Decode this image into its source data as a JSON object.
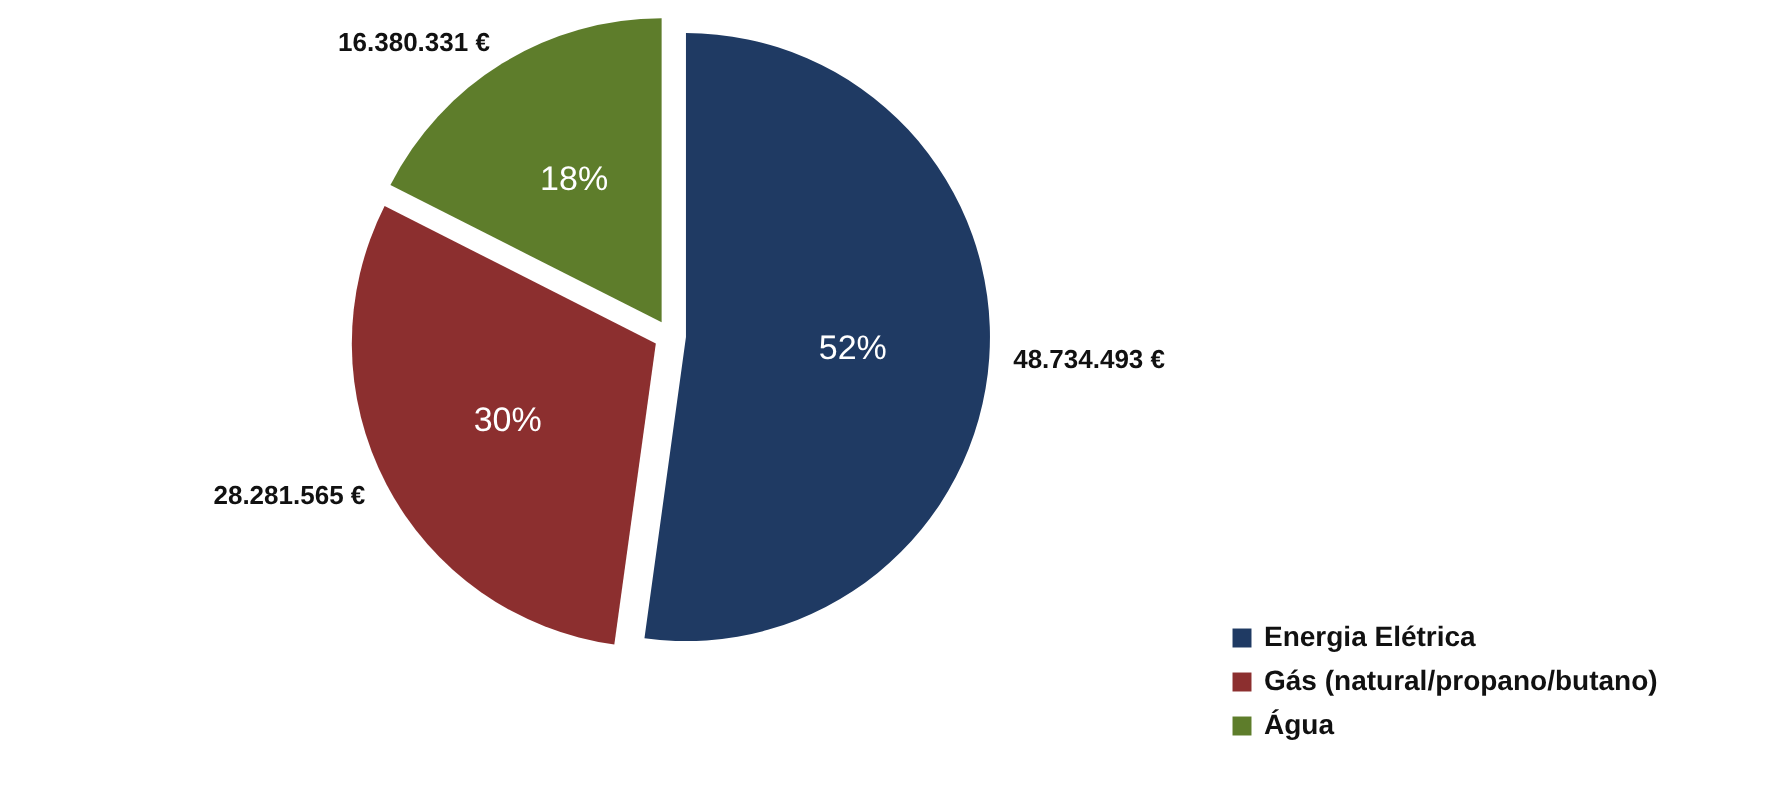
{
  "chart_data": {
    "type": "pie",
    "categories": [
      "Energia Elétrica",
      "Gás (natural/propano/butano)",
      "Água"
    ],
    "values": [
      48734493,
      28281565,
      16380331
    ],
    "colors": [
      "#1f3a63",
      "#8c2f2f",
      "#5e7d2b"
    ],
    "value_labels": [
      "48.734.493 €",
      "28.281.565 €",
      "16.380.331 €"
    ],
    "annotations": [
      "52%",
      "30%",
      "18%"
    ],
    "legend": "bottom right"
  }
}
